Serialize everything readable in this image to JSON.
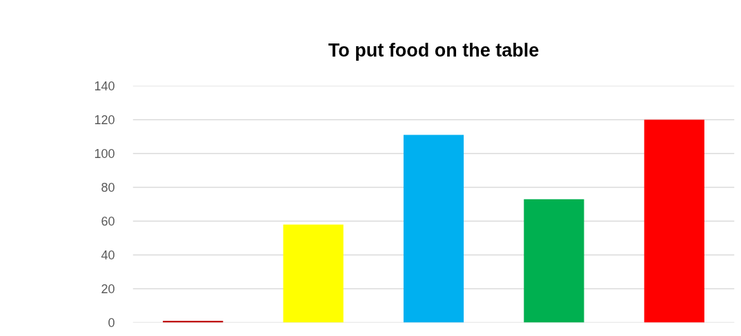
{
  "chart_data": {
    "type": "bar",
    "title": "To put food on the table",
    "categories": [
      null,
      null,
      null,
      null,
      null
    ],
    "values": [
      1,
      58,
      111,
      73,
      120
    ],
    "colors": [
      "#c00000",
      "#ffff00",
      "#00b0f0",
      "#00b050",
      "#ff0000"
    ],
    "ylim": [
      0,
      140
    ],
    "yticks": [
      0,
      20,
      40,
      60,
      80,
      100,
      120,
      140
    ],
    "grid": "y",
    "tick_labels": "y"
  }
}
